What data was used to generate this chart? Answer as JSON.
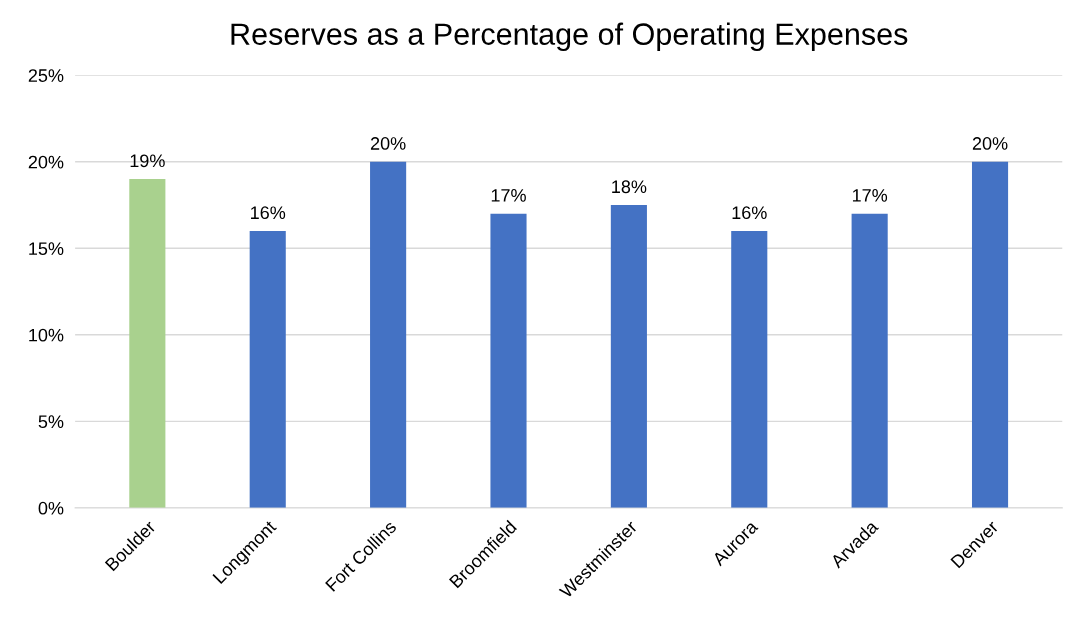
{
  "chart_data": {
    "type": "bar",
    "title": "Reserves as a Percentage of Operating Expenses",
    "categories": [
      "Boulder",
      "Longmont",
      "Fort Collins",
      "Broomfield",
      "Westminster",
      "Aurora",
      "Arvada",
      "Denver"
    ],
    "values": [
      19,
      16,
      20,
      17,
      17.5,
      16,
      17,
      20
    ],
    "colors": [
      "#a9d18e",
      "#4472c4",
      "#4472c4",
      "#4472c4",
      "#4472c4",
      "#4472c4",
      "#4472c4",
      "#4472c4"
    ],
    "value_labels": [
      "19%",
      "16%",
      "20%",
      "17%",
      "18%",
      "16%",
      "17%",
      "20%"
    ],
    "ylim": [
      0,
      25
    ],
    "yticks": [
      {
        "value": 0,
        "label": "0%"
      },
      {
        "value": 5,
        "label": "5%"
      },
      {
        "value": 10,
        "label": "10%"
      },
      {
        "value": 15,
        "label": "15%"
      },
      {
        "value": 20,
        "label": "20%"
      },
      {
        "value": 25,
        "label": "25%"
      }
    ],
    "grid": "y"
  }
}
